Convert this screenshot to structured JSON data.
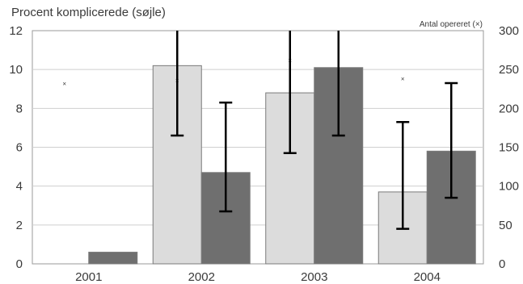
{
  "chart_data": {
    "type": "bar",
    "title": "Procent komplicerede (søjle)",
    "right_axis_label": "Antal opereret (×)",
    "categories": [
      "2001",
      "2002",
      "2003",
      "2004"
    ],
    "ylim": [
      0,
      12
    ],
    "yticks": [
      0,
      2,
      4,
      6,
      8,
      10,
      12
    ],
    "y2lim": [
      0,
      300
    ],
    "y2ticks": [
      0,
      50,
      100,
      150,
      200,
      250,
      300
    ],
    "grid": true,
    "legend": "none",
    "colors": {
      "series1": "#dcdcdc",
      "series2": "#6f6f6f",
      "error": "#000000",
      "marker": "#c8c8c8",
      "grid": "#cfcfcf"
    },
    "series": [
      {
        "values": [
          0,
          10.2,
          8.8,
          3.7
        ],
        "error_low": [
          null,
          6.6,
          5.7,
          1.8
        ],
        "error_high": [
          null,
          12,
          12,
          7.3
        ]
      },
      {
        "values": [
          0.6,
          4.7,
          10.1,
          5.8
        ],
        "error_low": [
          null,
          2.7,
          6.6,
          3.4
        ],
        "error_high": [
          null,
          8.3,
          12,
          9.3
        ]
      }
    ],
    "operated_counts": [
      232,
      236,
      262,
      238
    ]
  }
}
